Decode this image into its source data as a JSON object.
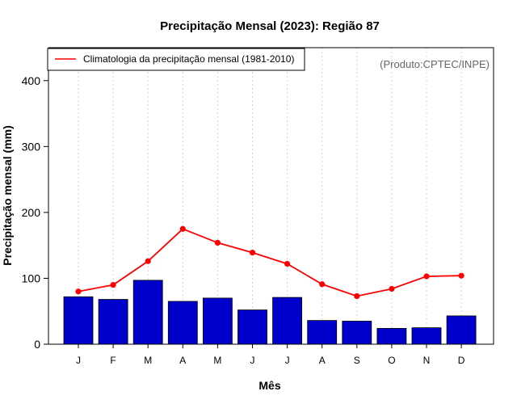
{
  "chart_data": {
    "type": "bar",
    "title": "Precipitação Mensal (2023): Região 87",
    "xlabel": "Mês",
    "ylabel": "Precipitação mensal (mm)",
    "ylim": [
      0,
      450
    ],
    "yticks": [
      0,
      100,
      200,
      300,
      400
    ],
    "categories": [
      "J",
      "F",
      "M",
      "A",
      "M",
      "J",
      "J",
      "A",
      "S",
      "O",
      "N",
      "D"
    ],
    "series": [
      {
        "name": "Precipitação mensal 2023",
        "type": "bar",
        "color": "#0000cc",
        "values": [
          72,
          68,
          97,
          65,
          70,
          52,
          71,
          36,
          35,
          24,
          25,
          43
        ]
      },
      {
        "name": "Climatologia da precipitação mensal (1981-2010)",
        "type": "line",
        "color": "#ff0000",
        "values": [
          80,
          90,
          126,
          175,
          154,
          139,
          122,
          91,
          73,
          84,
          103,
          104
        ]
      }
    ],
    "legend": {
      "position": "top-left",
      "entries": [
        "Climatologia da precipitação mensal (1981-2010)"
      ]
    },
    "annotation": "(Produto:CPTEC/INPE)",
    "grid": "vertical dotted"
  }
}
